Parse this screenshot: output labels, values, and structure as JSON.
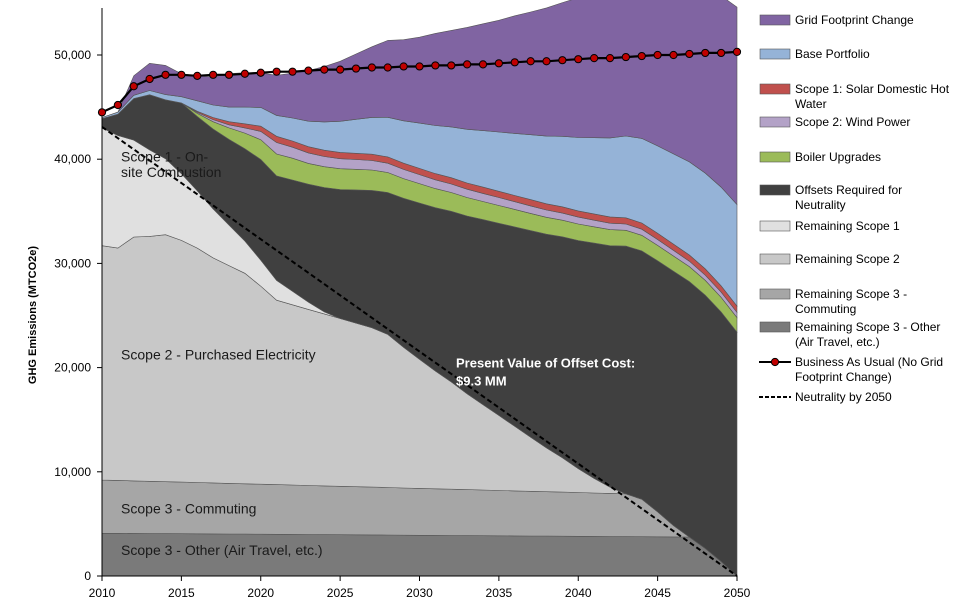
{
  "chart_data": {
    "type": "area",
    "ylabel": "GHG Emissions  (MTCO2e)",
    "xlim": [
      2010,
      2050
    ],
    "ylim": [
      0,
      55000
    ],
    "x_ticks": [
      "2010",
      "2015",
      "2020",
      "2025",
      "2030",
      "2035",
      "2040",
      "2045",
      "2050"
    ],
    "y_ticks": [
      "0",
      "10,000",
      "20,000",
      "30,000",
      "40,000",
      "50,000"
    ],
    "x": [
      2010,
      2011,
      2012,
      2013,
      2014,
      2015,
      2016,
      2017,
      2018,
      2019,
      2020,
      2021,
      2022,
      2023,
      2024,
      2025,
      2026,
      2027,
      2028,
      2029,
      2030,
      2031,
      2032,
      2033,
      2034,
      2035,
      2036,
      2037,
      2038,
      2039,
      2040,
      2041,
      2042,
      2043,
      2044,
      2045,
      2046,
      2047,
      2048,
      2049,
      2050
    ],
    "stacked_layers": [
      {
        "name": "Remaining Scope 3 - Other (Air Travel, etc.)",
        "color": "#7a7a7a",
        "values": [
          4100,
          4100,
          4090,
          4080,
          4070,
          4060,
          4050,
          4040,
          4030,
          4020,
          4010,
          4000,
          3990,
          3980,
          3970,
          3960,
          3950,
          3940,
          3930,
          3920,
          3910,
          3900,
          3890,
          3880,
          3870,
          3860,
          3850,
          3840,
          3830,
          3820,
          3810,
          3800,
          3790,
          3780,
          3770,
          3760,
          3750,
          3740,
          2650,
          1400,
          0
        ]
      },
      {
        "name": "Remaining Scope 3 - Commuting",
        "color": "#a6a6a6",
        "values": [
          5100,
          5070,
          5040,
          5010,
          4980,
          4950,
          4920,
          4890,
          4860,
          4830,
          4800,
          4770,
          4740,
          4710,
          4680,
          4650,
          4620,
          4590,
          4560,
          4530,
          4500,
          4470,
          4440,
          4410,
          4380,
          4350,
          4320,
          4290,
          4260,
          4230,
          4200,
          4170,
          4140,
          4110,
          3600,
          2400,
          1100,
          0,
          0,
          0,
          0
        ]
      },
      {
        "name": "Remaining Scope 2",
        "color": "#c8c8c8",
        "values": [
          22500,
          22300,
          23400,
          23500,
          23700,
          23200,
          22500,
          21600,
          20900,
          20200,
          19000,
          17700,
          17300,
          16900,
          16500,
          16100,
          15700,
          15300,
          14700,
          13500,
          12400,
          11300,
          10300,
          9200,
          8200,
          7200,
          6200,
          5200,
          4200,
          3300,
          2300,
          1400,
          600,
          0,
          0,
          0,
          0,
          0,
          0,
          0,
          0
        ]
      },
      {
        "name": "Remaining Scope 1",
        "color": "#e0e0e0",
        "values": [
          11300,
          10800,
          9300,
          8300,
          7300,
          6400,
          5500,
          4700,
          3900,
          3100,
          2500,
          1900,
          1300,
          700,
          200,
          0,
          0,
          0,
          0,
          0,
          0,
          0,
          0,
          0,
          0,
          0,
          0,
          0,
          0,
          0,
          0,
          0,
          0,
          0,
          0,
          0,
          0,
          0,
          0,
          0,
          0
        ]
      },
      {
        "name": "Offsets Required for Neutrality",
        "color": "#404040",
        "values": [
          900,
          2050,
          4000,
          5300,
          5650,
          6790,
          7130,
          7670,
          8210,
          8850,
          9660,
          10030,
          10670,
          11310,
          11930,
          12380,
          12780,
          13180,
          13610,
          14300,
          14990,
          15680,
          16370,
          17060,
          17750,
          18440,
          19130,
          19820,
          20510,
          21200,
          21890,
          22580,
          23170,
          23770,
          23830,
          24090,
          24400,
          24510,
          24300,
          23950,
          23400
        ]
      },
      {
        "name": "Boiler Upgrades",
        "color": "#9bbb59",
        "values": [
          0,
          0,
          0,
          0,
          0,
          0,
          300,
          700,
          1100,
          1500,
          1900,
          2100,
          2100,
          2000,
          2000,
          2000,
          1980,
          1950,
          1920,
          1890,
          1860,
          1830,
          1800,
          1770,
          1740,
          1710,
          1680,
          1650,
          1620,
          1600,
          1580,
          1560,
          1540,
          1520,
          1500,
          1480,
          1460,
          1440,
          1420,
          1400,
          1400
        ]
      },
      {
        "name": "Scope 2: Wind Power",
        "color": "#b3a2c7",
        "values": [
          0,
          0,
          0,
          0,
          0,
          0,
          100,
          200,
          300,
          500,
          800,
          1100,
          1050,
          1000,
          980,
          960,
          940,
          920,
          900,
          880,
          860,
          840,
          820,
          800,
          780,
          760,
          740,
          720,
          700,
          680,
          660,
          640,
          620,
          600,
          580,
          560,
          540,
          520,
          500,
          500,
          500
        ]
      },
      {
        "name": "Scope 1: Solar Domestic Hot Water",
        "color": "#c0504d",
        "values": [
          0,
          0,
          0,
          0,
          0,
          0,
          100,
          200,
          300,
          400,
          500,
          600,
          600,
          600,
          600,
          600,
          600,
          600,
          600,
          600,
          600,
          600,
          600,
          600,
          600,
          600,
          600,
          600,
          600,
          600,
          600,
          600,
          600,
          600,
          600,
          600,
          600,
          600,
          600,
          600,
          600
        ]
      },
      {
        "name": "Base Portfolio",
        "color": "#95b3d7",
        "values": [
          100,
          200,
          300,
          400,
          500,
          600,
          1000,
          1200,
          1400,
          1600,
          1800,
          2000,
          2200,
          2450,
          2720,
          2990,
          3260,
          3530,
          3800,
          4070,
          4340,
          4610,
          4880,
          5150,
          5420,
          5690,
          5960,
          6230,
          6500,
          6770,
          7040,
          7310,
          7580,
          7850,
          8120,
          8390,
          8660,
          8930,
          9200,
          9470,
          9740
        ]
      },
      {
        "name": "Grid Footprint Change",
        "color": "#8064a2",
        "values": [
          0,
          0,
          1870,
          2610,
          2800,
          2200,
          2400,
          2700,
          3210,
          3300,
          3310,
          3850,
          4300,
          4850,
          5320,
          5760,
          6270,
          6780,
          7380,
          7780,
          8250,
          8840,
          9260,
          9780,
          10250,
          10720,
          11280,
          11780,
          12300,
          12830,
          13410,
          13920,
          14450,
          14990,
          15560,
          16110,
          16630,
          17250,
          17780,
          18360,
          18960
        ]
      }
    ],
    "line_series": [
      {
        "name": "Business As Usual (No Grid Footprint Change)",
        "color": "#c00000",
        "marker": "circle",
        "values": [
          44500,
          45200,
          47000,
          47700,
          48100,
          48100,
          48000,
          48100,
          48100,
          48200,
          48300,
          48400,
          48400,
          48500,
          48600,
          48600,
          48700,
          48800,
          48800,
          48900,
          48900,
          49000,
          49000,
          49100,
          49100,
          49200,
          49300,
          49400,
          49400,
          49500,
          49600,
          49700,
          49700,
          49800,
          49900,
          50000,
          50000,
          50100,
          50200,
          50200,
          50300
        ]
      },
      {
        "name": "Neutrality by 2050",
        "color": "#000000",
        "dash": "dashed",
        "points": [
          [
            2010,
            43100
          ],
          [
            2050,
            0
          ]
        ]
      }
    ],
    "annotations": [
      {
        "lines": [
          "Scope 1 - On-",
          "site Combustion"
        ],
        "x": 2011.2,
        "y": [
          39800,
          38300
        ],
        "style": "normal"
      },
      {
        "lines": [
          "Scope 2 - Purchased Electricity"
        ],
        "x": 2011.2,
        "y": [
          20800
        ],
        "style": "normal"
      },
      {
        "lines": [
          "Scope 3 - Commuting"
        ],
        "x": 2011.2,
        "y": [
          6000
        ],
        "style": "normal"
      },
      {
        "lines": [
          "Scope 3 - Other (Air Travel, etc.)"
        ],
        "x": 2011.2,
        "y": [
          2000
        ],
        "style": "normal"
      },
      {
        "lines": [
          "Present Value of Offset Cost:",
          "$9.3 MM"
        ],
        "x": 2032.3,
        "y": [
          20000,
          18300
        ],
        "style": "bold"
      }
    ],
    "legend": {
      "placement": "right",
      "entries": [
        {
          "label_lines": [
            "Grid Footprint Change"
          ],
          "kind": "patch",
          "color": "#8064a2"
        },
        {
          "label_lines": [
            "Base Portfolio"
          ],
          "kind": "patch",
          "color": "#95b3d7"
        },
        {
          "label_lines": [
            "Scope 1: Solar Domestic Hot",
            "Water"
          ],
          "kind": "patch",
          "color": "#c0504d"
        },
        {
          "label_lines": [
            "Scope 2: Wind Power"
          ],
          "kind": "patch",
          "color": "#b3a2c7"
        },
        {
          "label_lines": [
            "Boiler Upgrades"
          ],
          "kind": "patch",
          "color": "#9bbb59"
        },
        {
          "label_lines": [
            "Offsets Required for",
            "Neutrality"
          ],
          "kind": "patch",
          "color": "#404040"
        },
        {
          "label_lines": [
            "Remaining Scope 1"
          ],
          "kind": "patch",
          "color": "#e0e0e0"
        },
        {
          "label_lines": [
            "Remaining Scope 2"
          ],
          "kind": "patch",
          "color": "#c8c8c8"
        },
        {
          "label_lines": [
            "Remaining Scope 3 -",
            "Commuting"
          ],
          "kind": "patch",
          "color": "#a6a6a6"
        },
        {
          "label_lines": [
            "Remaining Scope 3 - Other",
            "(Air Travel, etc.)"
          ],
          "kind": "patch",
          "color": "#7a7a7a"
        },
        {
          "label_lines": [
            "Business As Usual (No Grid",
            "Footprint Change)"
          ],
          "kind": "marker-line",
          "color": "#c00000"
        },
        {
          "label_lines": [
            "Neutrality by 2050"
          ],
          "kind": "dash-line",
          "color": "#000000"
        }
      ]
    }
  }
}
